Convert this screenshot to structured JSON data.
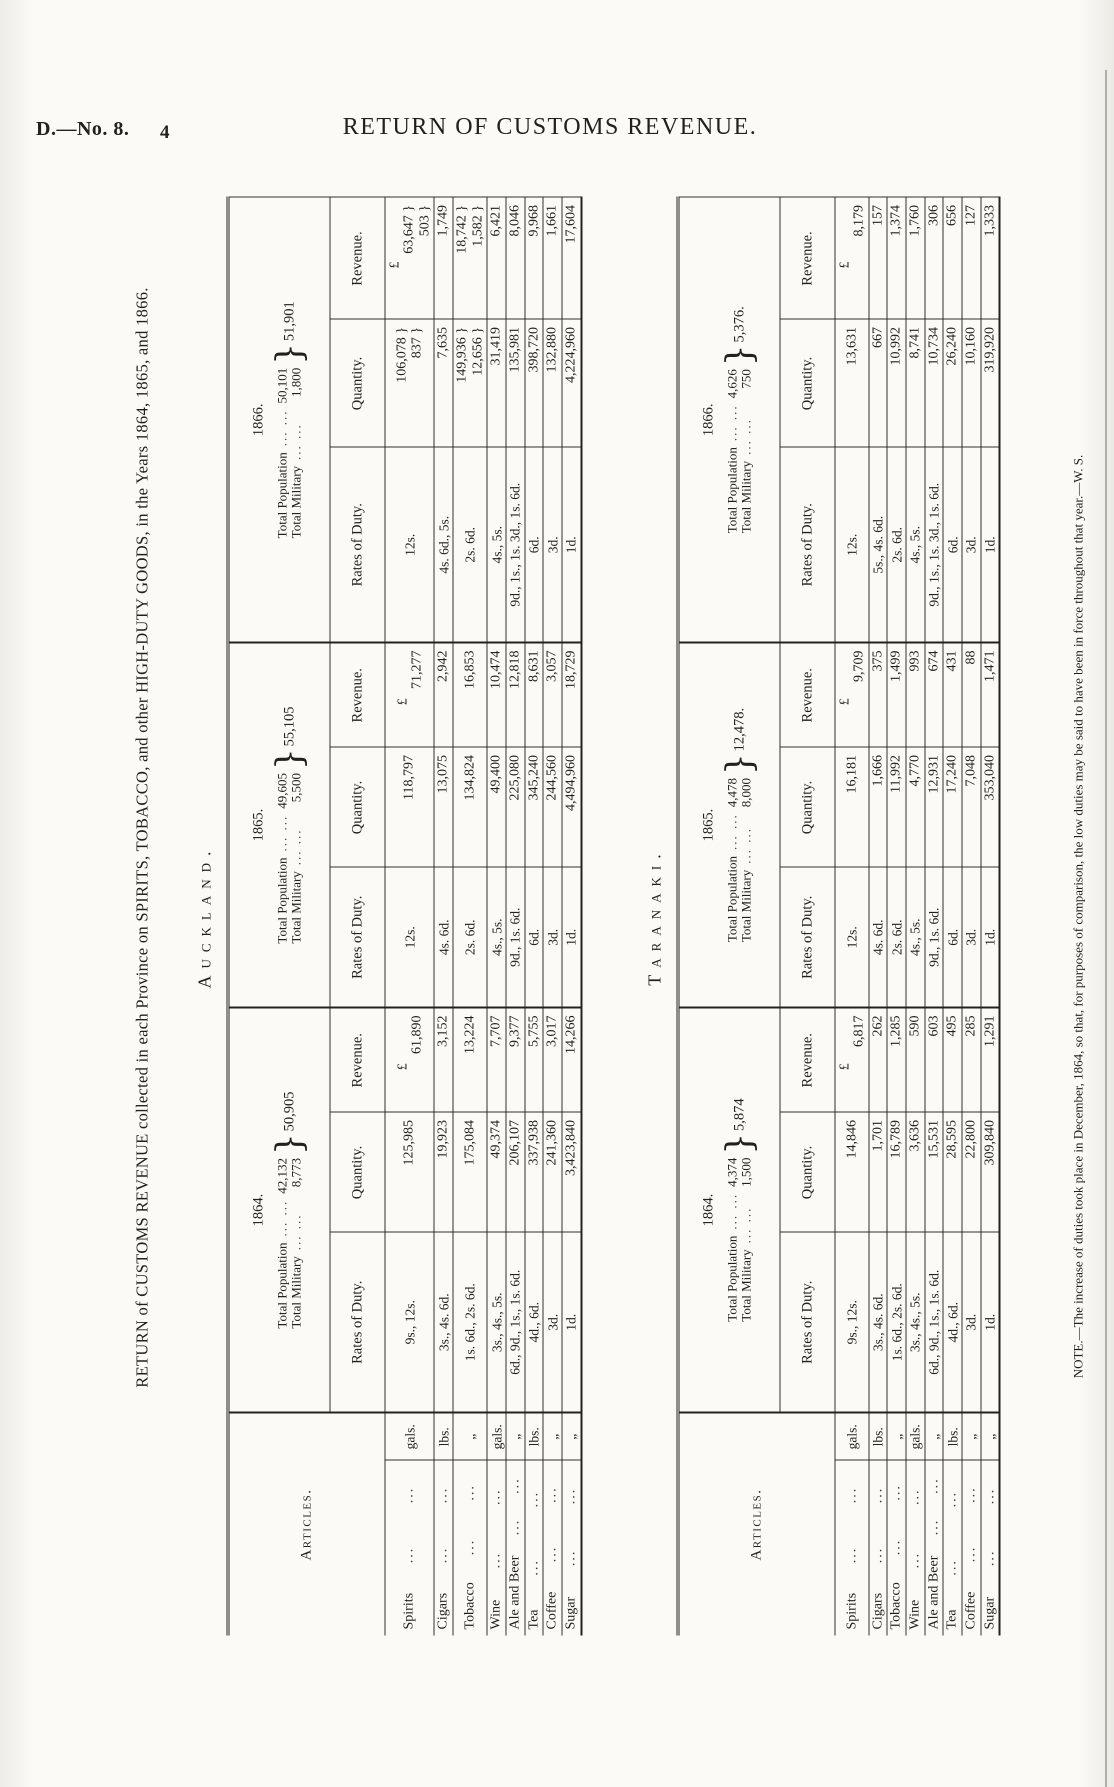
{
  "page": {
    "doc_ref": "D.—No. 8.",
    "page_num": "4",
    "running_title": "RETURN OF CUSTOMS REVENUE."
  },
  "title": "RETURN of CUSTOMS REVENUE collected in each Province on SPIRITS, TOBACCO, and other HIGH-DUTY GOODS, in the Years 1864, 1865, and 1866.",
  "note": "NOTE.—The increase of duties took place in December, 1864, so that, for purposes of comparison, the low duties may be said to have been in force throughout that year.—W. S.",
  "labels": {
    "articles": "Articles.",
    "rates": "Rates of Duty.",
    "quantity": "Quantity.",
    "revenue": "Revenue.",
    "pound": "£",
    "total_population": "Total Population",
    "total_military": "Total Military",
    "leader": "...",
    "brace": "}"
  },
  "provinces": [
    {
      "name": "Auckland.",
      "years": [
        {
          "label": "1864.",
          "population": "42,132",
          "military": "8,773",
          "total": "50,905"
        },
        {
          "label": "1865.",
          "population": "49,605",
          "military": "5,500",
          "total": "55,105"
        },
        {
          "label": "1866.",
          "population": "50,101",
          "military": "1,800",
          "total": "51,901"
        }
      ],
      "rows": [
        {
          "article": "Spirits",
          "unit": "gals.",
          "years": [
            {
              "rates": "9s., 12s.",
              "qty": "125,985",
              "rev": "61,890"
            },
            {
              "rates": "12s.",
              "qty": "118,797",
              "rev": "71,277"
            },
            {
              "rates": "12s.",
              "qty": "106,078 }|837 }",
              "rev": "63,647 }|503 }"
            }
          ]
        },
        {
          "article": "Cigars",
          "unit": "lbs.",
          "years": [
            {
              "rates": "3s., 4s. 6d.",
              "qty": "19,923",
              "rev": "3,152"
            },
            {
              "rates": "4s. 6d.",
              "qty": "13,075",
              "rev": "2,942"
            },
            {
              "rates": "4s. 6d., 5s.",
              "qty": "7,635",
              "rev": "1,749"
            }
          ]
        },
        {
          "article": "Tobacco",
          "unit": "„",
          "years": [
            {
              "rates": "1s. 6d., 2s. 6d.",
              "qty": "175,084",
              "rev": "13,224"
            },
            {
              "rates": "2s. 6d.",
              "qty": "134,824",
              "rev": "16,853"
            },
            {
              "rates": "2s. 6d.",
              "qty": "149,936 }|12,656 }",
              "rev": "18,742 }|1,582 }"
            }
          ]
        },
        {
          "article": "Wine",
          "unit": "gals.",
          "years": [
            {
              "rates": "3s., 4s., 5s.",
              "qty": "49,374",
              "rev": "7,707"
            },
            {
              "rates": "4s., 5s.",
              "qty": "49,400",
              "rev": "10,474"
            },
            {
              "rates": "4s., 5s.",
              "qty": "31,419",
              "rev": "6,421"
            }
          ]
        },
        {
          "article": "Ale and Beer",
          "unit": "„",
          "years": [
            {
              "rates": "6d., 9d., 1s., 1s. 6d.",
              "qty": "206,107",
              "rev": "9,377"
            },
            {
              "rates": "9d., 1s. 6d.",
              "qty": "225,080",
              "rev": "12,818"
            },
            {
              "rates": "9d., 1s., 1s. 3d., 1s. 6d.",
              "qty": "135,981",
              "rev": "8,046"
            }
          ]
        },
        {
          "article": "Tea",
          "unit": "lbs.",
          "years": [
            {
              "rates": "4d., 6d.",
              "qty": "337,938",
              "rev": "5,755"
            },
            {
              "rates": "6d.",
              "qty": "345,240",
              "rev": "8,631"
            },
            {
              "rates": "6d.",
              "qty": "398,720",
              "rev": "9,968"
            }
          ]
        },
        {
          "article": "Coffee",
          "unit": "„",
          "years": [
            {
              "rates": "3d.",
              "qty": "241,360",
              "rev": "3,017"
            },
            {
              "rates": "3d.",
              "qty": "244,560",
              "rev": "3,057"
            },
            {
              "rates": "3d.",
              "qty": "132,880",
              "rev": "1,661"
            }
          ]
        },
        {
          "article": "Sugar",
          "unit": "„",
          "years": [
            {
              "rates": "1d.",
              "qty": "3,423,840",
              "rev": "14,266"
            },
            {
              "rates": "1d.",
              "qty": "4,494,960",
              "rev": "18,729"
            },
            {
              "rates": "1d.",
              "qty": "4,224,960",
              "rev": "17,604"
            }
          ]
        }
      ]
    },
    {
      "name": "Taranaki.",
      "years": [
        {
          "label": "1864.",
          "population": "4,374",
          "military": "1,500",
          "total": "5,874"
        },
        {
          "label": "1865.",
          "population": "4,478",
          "military": "8,000",
          "total": "12,478."
        },
        {
          "label": "1866.",
          "population": "4,626",
          "military": "750",
          "total": "5,376."
        }
      ],
      "rows": [
        {
          "article": "Spirits",
          "unit": "gals.",
          "years": [
            {
              "rates": "9s., 12s.",
              "qty": "14,846",
              "rev": "6,817"
            },
            {
              "rates": "12s.",
              "qty": "16,181",
              "rev": "9,709"
            },
            {
              "rates": "12s.",
              "qty": "13,631",
              "rev": "8,179"
            }
          ]
        },
        {
          "article": "Cigars",
          "unit": "lbs.",
          "years": [
            {
              "rates": "3s., 4s. 6d.",
              "qty": "1,701",
              "rev": "262"
            },
            {
              "rates": "4s. 6d.",
              "qty": "1,666",
              "rev": "375"
            },
            {
              "rates": "5s., 4s. 6d.",
              "qty": "667",
              "rev": "157"
            }
          ]
        },
        {
          "article": "Tobacco",
          "unit": "„",
          "years": [
            {
              "rates": "1s. 6d., 2s. 6d.",
              "qty": "16,789",
              "rev": "1,285"
            },
            {
              "rates": "2s. 6d.",
              "qty": "11,992",
              "rev": "1,499"
            },
            {
              "rates": "2s. 6d.",
              "qty": "10,992",
              "rev": "1,374"
            }
          ]
        },
        {
          "article": "Wine",
          "unit": "gals.",
          "years": [
            {
              "rates": "3s., 4s., 5s.",
              "qty": "3,636",
              "rev": "590"
            },
            {
              "rates": "4s., 5s.",
              "qty": "4,770",
              "rev": "993"
            },
            {
              "rates": "4s., 5s.",
              "qty": "8,741",
              "rev": "1,760"
            }
          ]
        },
        {
          "article": "Ale and Beer",
          "unit": "„",
          "years": [
            {
              "rates": "6d., 9d., 1s., 1s. 6d.",
              "qty": "15,531",
              "rev": "603"
            },
            {
              "rates": "9d., 1s. 6d.",
              "qty": "12,931",
              "rev": "674"
            },
            {
              "rates": "9d., 1s., 1s. 3d., 1s. 6d.",
              "qty": "10,734",
              "rev": "306"
            }
          ]
        },
        {
          "article": "Tea",
          "unit": "lbs.",
          "years": [
            {
              "rates": "4d., 6d.",
              "qty": "28,595",
              "rev": "495"
            },
            {
              "rates": "6d.",
              "qty": "17,240",
              "rev": "431"
            },
            {
              "rates": "6d.",
              "qty": "26,240",
              "rev": "656"
            }
          ]
        },
        {
          "article": "Coffee",
          "unit": "„",
          "years": [
            {
              "rates": "3d.",
              "qty": "22,800",
              "rev": "285"
            },
            {
              "rates": "3d.",
              "qty": "7,048",
              "rev": "88"
            },
            {
              "rates": "3d.",
              "qty": "10,160",
              "rev": "127"
            }
          ]
        },
        {
          "article": "Sugar",
          "unit": "„",
          "years": [
            {
              "rates": "1d.",
              "qty": "309,840",
              "rev": "1,291"
            },
            {
              "rates": "1d.",
              "qty": "353,040",
              "rev": "1,471"
            },
            {
              "rates": "1d.",
              "qty": "319,920",
              "rev": "1,333"
            }
          ]
        }
      ]
    }
  ]
}
